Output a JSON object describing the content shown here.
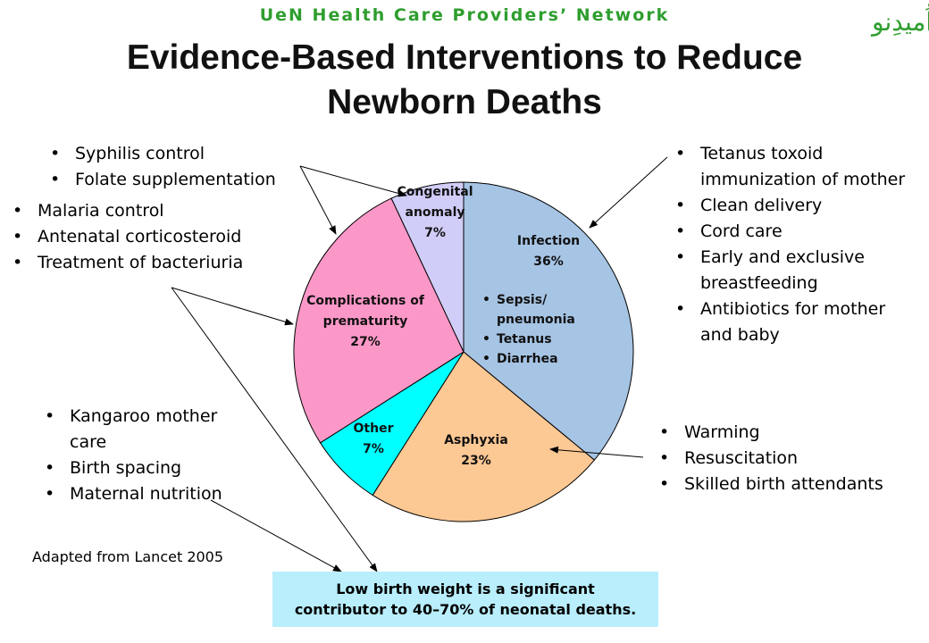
{
  "header": {
    "network": "UeN Health Care Providers’ Network",
    "logo_text": "اُمیدِنو",
    "title_line1": "Evidence-Based Interventions to Reduce",
    "title_line2": "Newborn Deaths"
  },
  "interventions": {
    "syphilis_folate": [
      "Syphilis control",
      "Folate supplementation"
    ],
    "malaria": [
      "Malaria control",
      "Antenatal corticosteroid",
      "Treatment of bacteriuria"
    ],
    "kangaroo": [
      "Kangaroo mother care",
      "Birth spacing",
      "Maternal nutrition"
    ],
    "tetanus": [
      "Tetanus toxoid immunization of mother",
      "Clean delivery",
      "Cord care",
      "Early and exclusive breastfeeding",
      "Antibiotics for mother and baby"
    ],
    "warming": [
      "Warming",
      "Resuscitation",
      "Skilled birth attendants"
    ]
  },
  "source": "Adapted from Lancet 2005",
  "lbw_box": {
    "line1": "Low birth weight is a significant",
    "line2": "contributor to 40–70% of neonatal deaths."
  },
  "chart_data": {
    "type": "pie",
    "start_angle_deg": 0,
    "direction": "clockwise",
    "slices": [
      {
        "label_lines": [
          "Infection"
        ],
        "value": 36,
        "value_label": "36%",
        "color": "#a6c4e4",
        "sub_items": [
          "Sepsis/ pneumonia",
          "Tetanus",
          "Diarrhea"
        ]
      },
      {
        "label_lines": [
          "Asphyxia"
        ],
        "value": 23,
        "value_label": "23%",
        "color": "#fcc894"
      },
      {
        "label_lines": [
          "Other"
        ],
        "value": 7,
        "value_label": "7%",
        "color": "#00ffff"
      },
      {
        "label_lines": [
          "Complications of",
          "prematurity"
        ],
        "value": 27,
        "value_label": "27%",
        "color": "#fc98c8"
      },
      {
        "label_lines": [
          "Congenital",
          "anomaly"
        ],
        "value": 7,
        "value_label": "7%",
        "color": "#d0cdf8"
      }
    ]
  }
}
